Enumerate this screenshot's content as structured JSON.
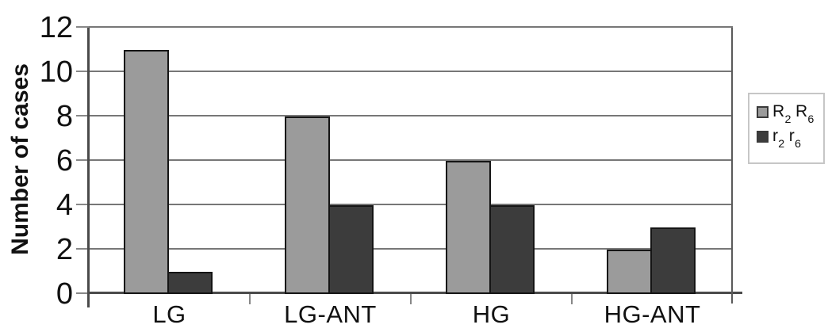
{
  "colors": {
    "background": "#ffffff",
    "axis": "#4a4a4a",
    "plot_right_border": "#5a5a5a",
    "gridline": "#777777",
    "tick": "#888888",
    "bar_border": "#151515",
    "legend_border": "#c6c6c6",
    "text": "#111111",
    "series1_fill": "#9b9b9b",
    "series2_fill": "#3c3c3c"
  },
  "chart_data": {
    "type": "bar",
    "title": "",
    "xlabel": "",
    "ylabel": "Number of cases",
    "categories": [
      "LG",
      "LG-ANT",
      "HG",
      "HG-ANT"
    ],
    "series": [
      {
        "name": "R2 R6",
        "color": "#9b9b9b",
        "values": [
          11,
          8,
          6,
          2
        ],
        "label_segments": [
          {
            "text": "R"
          },
          {
            "text": "2",
            "subscript": true
          },
          {
            "text": " R"
          },
          {
            "text": "6",
            "subscript": true
          }
        ]
      },
      {
        "name": "r2 r6",
        "color": "#3c3c3c",
        "values": [
          1,
          4,
          4,
          3
        ],
        "label_segments": [
          {
            "text": "r"
          },
          {
            "text": "2",
            "subscript": true
          },
          {
            "text": " r"
          },
          {
            "text": "6",
            "subscript": true
          }
        ]
      }
    ],
    "ylim": [
      0,
      12
    ],
    "yticks": [
      0,
      2,
      4,
      6,
      8,
      10,
      12
    ],
    "grid": true,
    "grouped": true,
    "legend_position": "right"
  }
}
